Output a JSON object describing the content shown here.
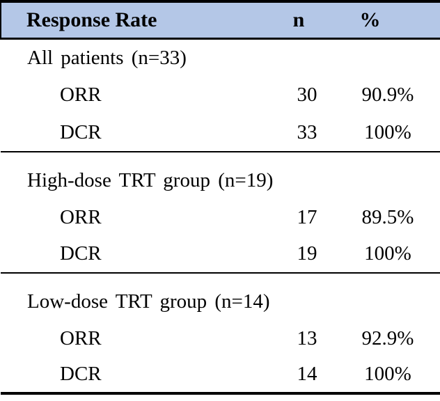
{
  "table": {
    "style": {
      "header_bg": "#b4c7e7",
      "border_color": "#000000",
      "text_color": "#000000",
      "page_bg": "#ffffff"
    },
    "header": {
      "title": "Response Rate",
      "n": "n",
      "percent": "%"
    },
    "sections": [
      {
        "label": "All patients (n=33)",
        "rows": [
          {
            "measure": "ORR",
            "n": "30",
            "percent": "90.9%"
          },
          {
            "measure": "DCR",
            "n": "33",
            "percent": "100%"
          }
        ]
      },
      {
        "label": "High-dose TRT group (n=19)",
        "rows": [
          {
            "measure": "ORR",
            "n": "17",
            "percent": "89.5%"
          },
          {
            "measure": "DCR",
            "n": "19",
            "percent": "100%"
          }
        ]
      },
      {
        "label": "Low-dose TRT group (n=14)",
        "rows": [
          {
            "measure": "ORR",
            "n": "13",
            "percent": "92.9%"
          },
          {
            "measure": "DCR",
            "n": "14",
            "percent": "100%"
          }
        ]
      }
    ]
  }
}
